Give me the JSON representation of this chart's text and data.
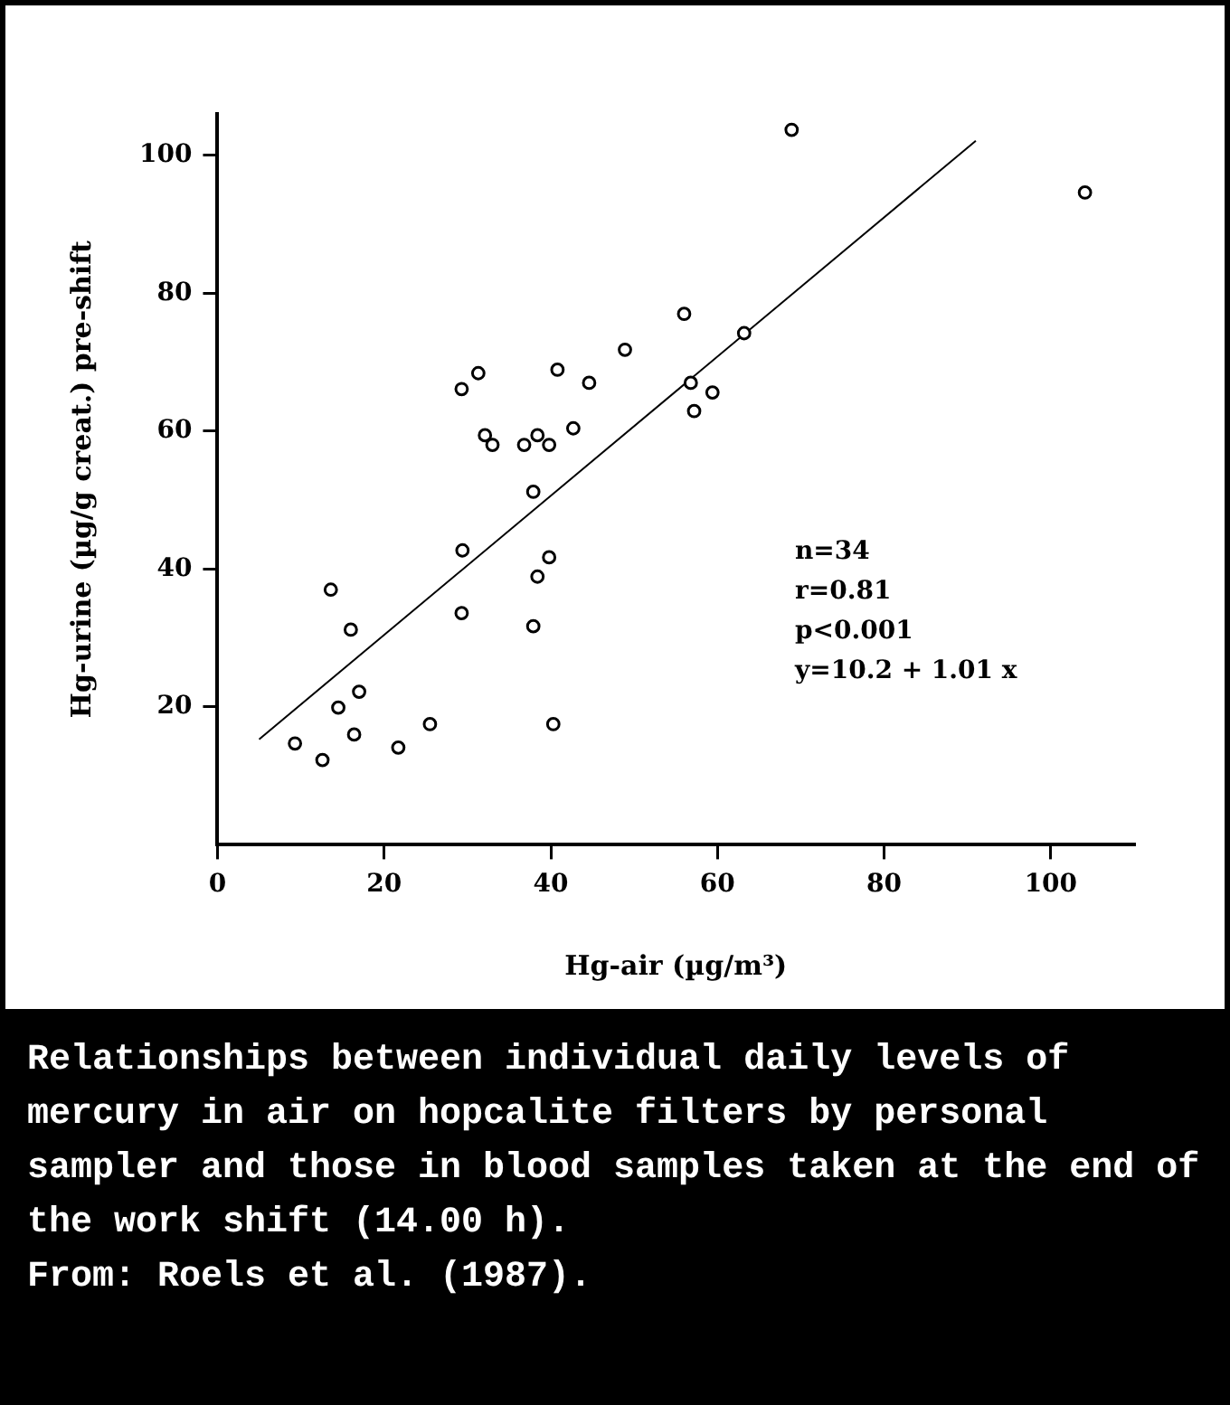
{
  "chart_data": {
    "type": "scatter",
    "xlabel": "Hg-air (µg/m³)",
    "ylabel": "Hg-urine (µg/g creat.) pre-shift",
    "xlim": [
      0,
      110
    ],
    "xticks": [
      0,
      20,
      40,
      60,
      80,
      100
    ],
    "ylim": [
      0,
      106
    ],
    "yticks": [
      20,
      40,
      60,
      80,
      100
    ],
    "grid": false,
    "legend": false,
    "marker": "circle",
    "series": [
      {
        "type": "scatter",
        "color": "#000000",
        "x": [
          9.3,
          12.6,
          13.6,
          14.5,
          16.0,
          16.4,
          17.0,
          21.7,
          25.5,
          29.3,
          29.4,
          37.9,
          38.4,
          39.8,
          40.3,
          37.9,
          29.3,
          31.3,
          32.1,
          33.0,
          36.8,
          38.4,
          39.8,
          40.8,
          42.7,
          44.6,
          48.9,
          56.0,
          56.8,
          57.2,
          59.4,
          63.2,
          68.9,
          104.1
        ],
        "values": [
          14.7,
          12.3,
          37.0,
          19.9,
          31.2,
          16.0,
          22.2,
          14.1,
          17.5,
          33.6,
          42.7,
          31.7,
          38.9,
          41.7,
          17.5,
          51.2,
          66.1,
          68.4,
          59.4,
          58.0,
          58.0,
          59.4,
          58.0,
          68.9,
          60.4,
          67.0,
          71.8,
          77.0,
          67.0,
          62.9,
          65.6,
          74.2,
          103.7,
          94.6
        ]
      },
      {
        "type": "line",
        "color": "#000000",
        "x": [
          5,
          91
        ],
        "values": [
          15.3,
          102.1
        ],
        "marker": "none"
      }
    ],
    "annotations": [
      "n=34",
      "r=0.81",
      "p<0.001",
      "y=10.2 + 1.01 x",
      "Relationships between individual daily levels of mercury in air on hopcalite filters by personal sampler and those in blood samples taken at the end of the work shift (14.00 h).",
      "From: Roels et al. (1987)."
    ]
  }
}
